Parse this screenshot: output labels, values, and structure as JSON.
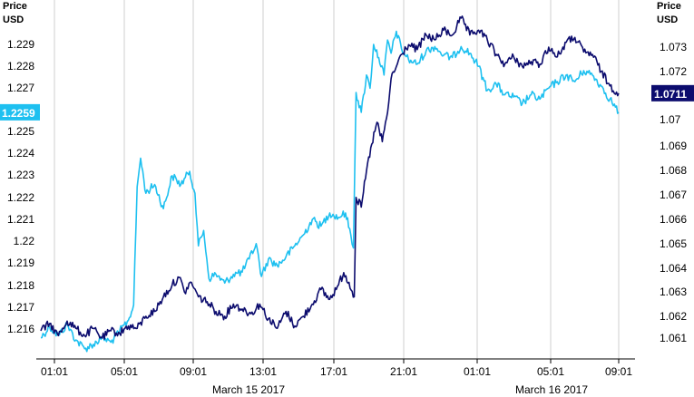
{
  "chart_data": {
    "type": "line",
    "left_axis_title": [
      "Price",
      "USD"
    ],
    "right_axis_title": [
      "Price",
      "USD"
    ],
    "left_ylim": [
      1.215,
      1.231
    ],
    "right_ylim": [
      1.0603,
      1.0748
    ],
    "left_ticks": [
      "1.216",
      "1.217",
      "1.218",
      "1.219",
      "1.22",
      "1.221",
      "1.222",
      "1.223",
      "1.224",
      "1.225",
      "1.227",
      "1.228",
      "1.229"
    ],
    "right_ticks": [
      "1.061",
      "1.062",
      "1.063",
      "1.064",
      "1.065",
      "1.066",
      "1.067",
      "1.068",
      "1.069",
      "1.07",
      "1.072",
      "1.073"
    ],
    "x_ticks": [
      "01:01",
      "05:01",
      "09:01",
      "13:01",
      "17:01",
      "21:01",
      "01:01",
      "05:01",
      "09:01"
    ],
    "x_dates": [
      "March 15 2017",
      "March 16 2017"
    ],
    "grid": "vertical",
    "series": [
      {
        "axis": "left",
        "color": "#1ec0f0",
        "last_value_label": "1.2259",
        "points": [
          [
            0,
            1.2156
          ],
          [
            0.5,
            1.2161
          ],
          [
            1.0,
            1.2157
          ],
          [
            1.5,
            1.2162
          ],
          [
            2.0,
            1.2155
          ],
          [
            2.5,
            1.2151
          ],
          [
            3.0,
            1.2153
          ],
          [
            3.5,
            1.2156
          ],
          [
            4.0,
            1.2154
          ],
          [
            4.5,
            1.2159
          ],
          [
            5.0,
            1.2164
          ],
          [
            5.3,
            1.2171
          ],
          [
            5.5,
            1.2225
          ],
          [
            5.7,
            1.2238
          ],
          [
            6.0,
            1.2222
          ],
          [
            6.5,
            1.2226
          ],
          [
            7.0,
            1.2215
          ],
          [
            7.5,
            1.223
          ],
          [
            8.0,
            1.2226
          ],
          [
            8.5,
            1.2232
          ],
          [
            8.8,
            1.2222
          ],
          [
            9.0,
            1.2198
          ],
          [
            9.3,
            1.2205
          ],
          [
            9.6,
            1.2183
          ],
          [
            10.0,
            1.2185
          ],
          [
            10.5,
            1.2181
          ],
          [
            11.0,
            1.2185
          ],
          [
            11.5,
            1.2186
          ],
          [
            11.9,
            1.2192
          ],
          [
            12.3,
            1.2199
          ],
          [
            12.6,
            1.2184
          ],
          [
            13.0,
            1.2192
          ],
          [
            13.5,
            1.2189
          ],
          [
            14.0,
            1.2193
          ],
          [
            14.5,
            1.2198
          ],
          [
            15.0,
            1.2203
          ],
          [
            15.5,
            1.221
          ],
          [
            16.0,
            1.2207
          ],
          [
            16.5,
            1.2213
          ],
          [
            17.0,
            1.2211
          ],
          [
            17.4,
            1.2213
          ],
          [
            17.7,
            1.2203
          ],
          [
            17.85,
            1.2197
          ],
          [
            18.0,
            1.2268
          ],
          [
            18.3,
            1.2259
          ],
          [
            18.6,
            1.2276
          ],
          [
            18.8,
            1.227
          ],
          [
            19.0,
            1.229
          ],
          [
            19.3,
            1.2284
          ],
          [
            19.6,
            1.2276
          ],
          [
            19.8,
            1.2292
          ],
          [
            20.0,
            1.2286
          ],
          [
            20.3,
            1.2296
          ],
          [
            20.6,
            1.2288
          ],
          [
            21.0,
            1.2283
          ],
          [
            21.5,
            1.2281
          ],
          [
            22.0,
            1.2287
          ],
          [
            22.5,
            1.2289
          ],
          [
            23.0,
            1.2285
          ],
          [
            23.5,
            1.2284
          ],
          [
            24.0,
            1.2289
          ],
          [
            24.5,
            1.2286
          ],
          [
            25.0,
            1.228
          ],
          [
            25.5,
            1.2269
          ],
          [
            26.0,
            1.2272
          ],
          [
            26.5,
            1.2267
          ],
          [
            27.0,
            1.2266
          ],
          [
            27.5,
            1.2263
          ],
          [
            28.0,
            1.2267
          ],
          [
            28.5,
            1.2265
          ],
          [
            29.0,
            1.227
          ],
          [
            29.5,
            1.2273
          ],
          [
            30.0,
            1.2276
          ],
          [
            30.5,
            1.2273
          ],
          [
            31.0,
            1.2278
          ],
          [
            31.5,
            1.2276
          ],
          [
            32.0,
            1.2271
          ],
          [
            32.5,
            1.2265
          ],
          [
            33.0,
            1.2259
          ]
        ]
      },
      {
        "axis": "right",
        "color": "#0c0c6e",
        "last_value_label": "1.0711",
        "points": [
          [
            0,
            1.0613
          ],
          [
            0.5,
            1.0616
          ],
          [
            1.0,
            1.0611
          ],
          [
            1.5,
            1.0617
          ],
          [
            2.0,
            1.0614
          ],
          [
            2.5,
            1.0611
          ],
          [
            3.0,
            1.0614
          ],
          [
            3.5,
            1.061
          ],
          [
            4.0,
            1.0613
          ],
          [
            4.5,
            1.0612
          ],
          [
            5.0,
            1.0615
          ],
          [
            5.5,
            1.0614
          ],
          [
            6.0,
            1.0619
          ],
          [
            6.5,
            1.0621
          ],
          [
            7.0,
            1.0627
          ],
          [
            7.5,
            1.0632
          ],
          [
            7.9,
            1.0635
          ],
          [
            8.2,
            1.0629
          ],
          [
            8.6,
            1.0633
          ],
          [
            9.0,
            1.0627
          ],
          [
            9.5,
            1.0625
          ],
          [
            10.0,
            1.0621
          ],
          [
            10.5,
            1.0619
          ],
          [
            11.0,
            1.0624
          ],
          [
            11.5,
            1.0622
          ],
          [
            12.0,
            1.062
          ],
          [
            12.5,
            1.0624
          ],
          [
            13.0,
            1.0618
          ],
          [
            13.5,
            1.0614
          ],
          [
            14.0,
            1.0621
          ],
          [
            14.5,
            1.0615
          ],
          [
            15.0,
            1.0619
          ],
          [
            15.5,
            1.0624
          ],
          [
            16.0,
            1.063
          ],
          [
            16.5,
            1.0626
          ],
          [
            17.0,
            1.0632
          ],
          [
            17.3,
            1.0637
          ],
          [
            17.6,
            1.0633
          ],
          [
            17.9,
            1.0627
          ],
          [
            18.0,
            1.0668
          ],
          [
            18.3,
            1.0664
          ],
          [
            18.6,
            1.0679
          ],
          [
            18.9,
            1.069
          ],
          [
            19.2,
            1.0699
          ],
          [
            19.5,
            1.0691
          ],
          [
            19.8,
            1.0703
          ],
          [
            20.0,
            1.0717
          ],
          [
            20.3,
            1.0722
          ],
          [
            20.6,
            1.0727
          ],
          [
            21.0,
            1.0731
          ],
          [
            21.5,
            1.0729
          ],
          [
            22.0,
            1.0735
          ],
          [
            22.5,
            1.0733
          ],
          [
            23.0,
            1.0737
          ],
          [
            23.5,
            1.0735
          ],
          [
            24.0,
            1.0742
          ],
          [
            24.5,
            1.0735
          ],
          [
            25.0,
            1.0737
          ],
          [
            25.5,
            1.0733
          ],
          [
            26.0,
            1.0727
          ],
          [
            26.5,
            1.0723
          ],
          [
            27.0,
            1.0726
          ],
          [
            27.5,
            1.0722
          ],
          [
            28.0,
            1.0724
          ],
          [
            28.5,
            1.0723
          ],
          [
            29.0,
            1.073
          ],
          [
            29.5,
            1.0726
          ],
          [
            30.0,
            1.0732
          ],
          [
            30.5,
            1.0734
          ],
          [
            31.0,
            1.0728
          ],
          [
            31.5,
            1.0727
          ],
          [
            32.0,
            1.072
          ],
          [
            32.5,
            1.0714
          ],
          [
            33.0,
            1.0711
          ]
        ]
      }
    ]
  }
}
